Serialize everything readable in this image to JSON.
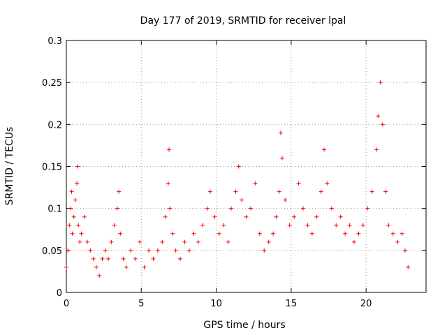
{
  "chart_data": {
    "type": "scatter",
    "title": "Day 177 of 2019, SRMTID for receiver lpal",
    "xlabel": "GPS time / hours",
    "ylabel": "SRMTID / TECUs",
    "xlim": [
      0,
      24
    ],
    "ylim": [
      0,
      0.3
    ],
    "x_ticks": [
      0,
      5,
      10,
      15,
      20
    ],
    "x_tick_labels": [
      "0",
      "5",
      "10",
      "15",
      "20"
    ],
    "y_ticks": [
      0,
      0.05,
      0.1,
      0.15,
      0.2,
      0.25,
      0.3
    ],
    "y_tick_labels": [
      "0",
      "0.05",
      "0.1",
      "0.15",
      "0.2",
      "0.25",
      "0.3"
    ],
    "grid": true,
    "marker": "plus",
    "color": "#ff0000",
    "series": [
      {
        "name": "SRMTID",
        "points": [
          [
            0.0,
            0.03
          ],
          [
            0.1,
            0.05
          ],
          [
            0.2,
            0.08
          ],
          [
            0.3,
            0.1
          ],
          [
            0.35,
            0.12
          ],
          [
            0.4,
            0.07
          ],
          [
            0.5,
            0.09
          ],
          [
            0.6,
            0.11
          ],
          [
            0.7,
            0.13
          ],
          [
            0.75,
            0.15
          ],
          [
            0.8,
            0.08
          ],
          [
            0.9,
            0.06
          ],
          [
            1.0,
            0.07
          ],
          [
            1.2,
            0.09
          ],
          [
            1.4,
            0.06
          ],
          [
            1.6,
            0.05
          ],
          [
            1.8,
            0.04
          ],
          [
            2.0,
            0.03
          ],
          [
            2.2,
            0.02
          ],
          [
            2.4,
            0.04
          ],
          [
            2.6,
            0.05
          ],
          [
            2.8,
            0.04
          ],
          [
            3.0,
            0.06
          ],
          [
            3.2,
            0.08
          ],
          [
            3.4,
            0.1
          ],
          [
            3.5,
            0.12
          ],
          [
            3.6,
            0.07
          ],
          [
            3.8,
            0.04
          ],
          [
            4.0,
            0.03
          ],
          [
            4.3,
            0.05
          ],
          [
            4.6,
            0.04
          ],
          [
            4.9,
            0.06
          ],
          [
            5.2,
            0.03
          ],
          [
            5.5,
            0.05
          ],
          [
            5.8,
            0.04
          ],
          [
            6.1,
            0.05
          ],
          [
            6.4,
            0.06
          ],
          [
            6.6,
            0.09
          ],
          [
            6.8,
            0.13
          ],
          [
            6.85,
            0.17
          ],
          [
            6.9,
            0.1
          ],
          [
            7.1,
            0.07
          ],
          [
            7.3,
            0.05
          ],
          [
            7.6,
            0.04
          ],
          [
            7.9,
            0.06
          ],
          [
            8.2,
            0.05
          ],
          [
            8.5,
            0.07
          ],
          [
            8.8,
            0.06
          ],
          [
            9.1,
            0.08
          ],
          [
            9.4,
            0.1
          ],
          [
            9.6,
            0.12
          ],
          [
            9.9,
            0.09
          ],
          [
            10.2,
            0.07
          ],
          [
            10.5,
            0.08
          ],
          [
            10.8,
            0.06
          ],
          [
            11.0,
            0.1
          ],
          [
            11.3,
            0.12
          ],
          [
            11.5,
            0.15
          ],
          [
            11.7,
            0.11
          ],
          [
            12.0,
            0.09
          ],
          [
            12.3,
            0.1
          ],
          [
            12.6,
            0.13
          ],
          [
            12.9,
            0.07
          ],
          [
            13.2,
            0.05
          ],
          [
            13.5,
            0.06
          ],
          [
            13.8,
            0.07
          ],
          [
            14.0,
            0.09
          ],
          [
            14.2,
            0.12
          ],
          [
            14.3,
            0.19
          ],
          [
            14.4,
            0.16
          ],
          [
            14.6,
            0.11
          ],
          [
            14.9,
            0.08
          ],
          [
            15.2,
            0.09
          ],
          [
            15.5,
            0.13
          ],
          [
            15.8,
            0.1
          ],
          [
            16.1,
            0.08
          ],
          [
            16.4,
            0.07
          ],
          [
            16.7,
            0.09
          ],
          [
            17.0,
            0.12
          ],
          [
            17.2,
            0.17
          ],
          [
            17.4,
            0.13
          ],
          [
            17.7,
            0.1
          ],
          [
            18.0,
            0.08
          ],
          [
            18.3,
            0.09
          ],
          [
            18.6,
            0.07
          ],
          [
            18.9,
            0.08
          ],
          [
            19.2,
            0.06
          ],
          [
            19.5,
            0.07
          ],
          [
            19.8,
            0.08
          ],
          [
            20.1,
            0.1
          ],
          [
            20.4,
            0.12
          ],
          [
            20.7,
            0.17
          ],
          [
            20.8,
            0.21
          ],
          [
            20.95,
            0.25
          ],
          [
            21.1,
            0.2
          ],
          [
            21.3,
            0.12
          ],
          [
            21.5,
            0.08
          ],
          [
            21.8,
            0.07
          ],
          [
            22.1,
            0.06
          ],
          [
            22.4,
            0.07
          ],
          [
            22.6,
            0.05
          ],
          [
            22.8,
            0.03
          ]
        ]
      }
    ]
  }
}
